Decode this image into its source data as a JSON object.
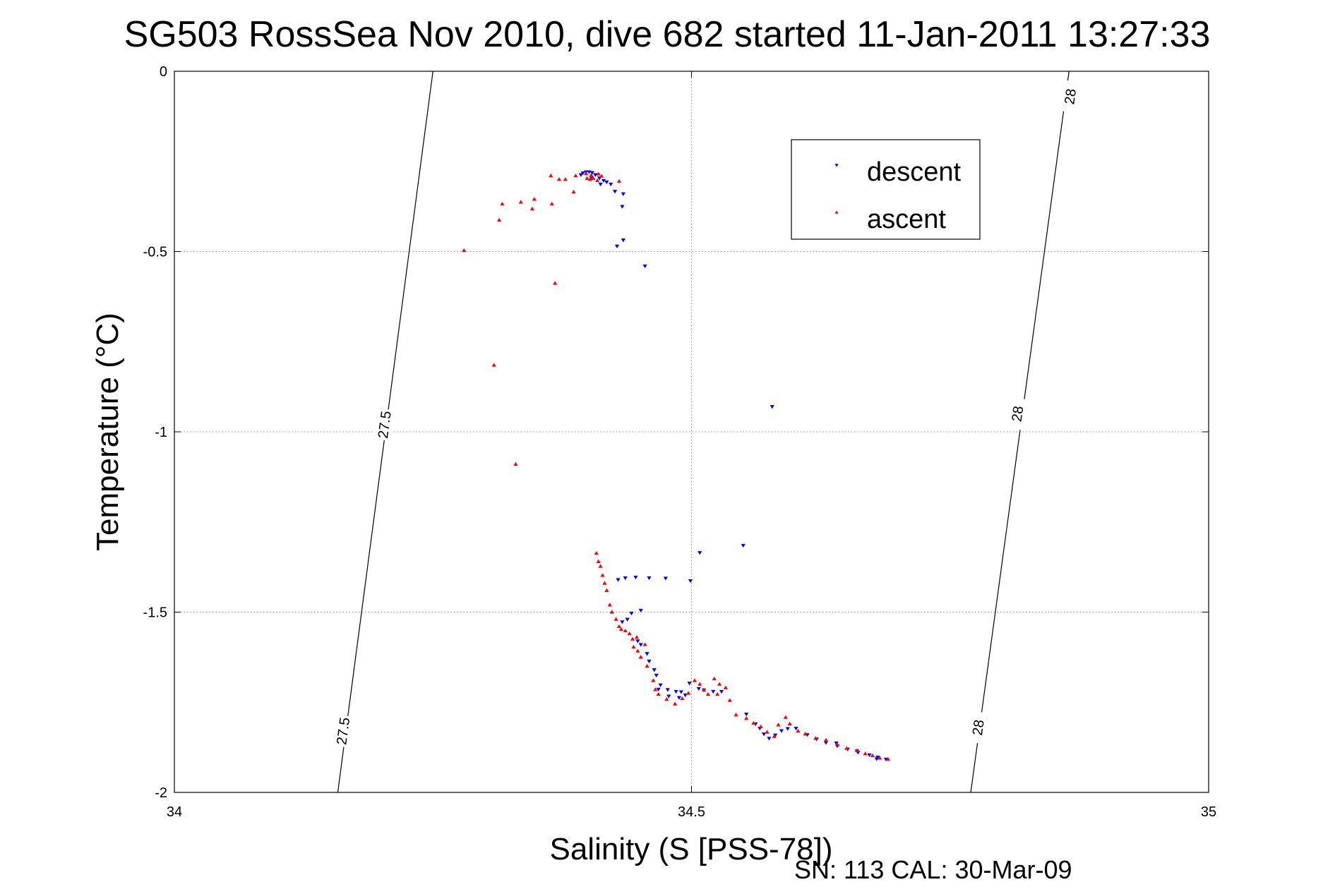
{
  "chart_data": {
    "type": "scatter",
    "title": "SG503 RossSea Nov 2010, dive 682 started 11-Jan-2011 13:27:33",
    "xlabel": "Salinity (S [PSS-78])",
    "ylabel": "Temperature (°C)",
    "footer": "SN: 113  CAL: 30-Mar-09",
    "xlim": [
      34,
      35
    ],
    "ylim": [
      -2,
      0
    ],
    "xticks": [
      34,
      34.5,
      35
    ],
    "yticks": [
      0,
      -0.5,
      -1,
      -1.5,
      -2
    ],
    "xtick_labels": [
      "34",
      "34.5",
      "35"
    ],
    "ytick_labels": [
      "0",
      "-0.5",
      "-1",
      "-1.5",
      "-2"
    ],
    "grid": true,
    "legend": {
      "placement": "top-right",
      "entries": [
        "descent",
        "ascent"
      ]
    },
    "colors": {
      "descent": "#0000ff",
      "ascent": "#ff0000",
      "contour": "#000000",
      "grid": "#8c8c8c"
    },
    "contours": [
      {
        "label": "27.5",
        "points": [
          [
            34.25,
            0
          ],
          [
            34.158,
            -2
          ]
        ],
        "label_positions": [
          [
            34.203,
            -0.98
          ],
          [
            34.163,
            -1.83
          ]
        ]
      },
      {
        "label": "28",
        "points": [
          [
            34.865,
            0
          ],
          [
            34.77,
            -2
          ]
        ],
        "label_positions": [
          [
            34.866,
            -0.07
          ],
          [
            34.815,
            -0.95
          ],
          [
            34.777,
            -1.82
          ]
        ]
      }
    ],
    "series": [
      {
        "name": "descent",
        "marker": "triangle-down",
        "points": [
          [
            34.395,
            -0.282
          ],
          [
            34.398,
            -0.279
          ],
          [
            34.401,
            -0.279
          ],
          [
            34.404,
            -0.281
          ],
          [
            34.407,
            -0.287
          ],
          [
            34.411,
            -0.296
          ],
          [
            34.415,
            -0.303
          ],
          [
            34.418,
            -0.307
          ],
          [
            34.422,
            -0.313
          ],
          [
            34.412,
            -0.313
          ],
          [
            34.393,
            -0.287
          ],
          [
            34.403,
            -0.294
          ],
          [
            34.426,
            -0.333
          ],
          [
            34.434,
            -0.34
          ],
          [
            34.433,
            -0.375
          ],
          [
            34.434,
            -0.468
          ],
          [
            34.428,
            -0.485
          ],
          [
            34.455,
            -0.54
          ],
          [
            34.578,
            -0.93
          ],
          [
            34.429,
            -1.41
          ],
          [
            34.436,
            -1.405
          ],
          [
            34.446,
            -1.403
          ],
          [
            34.459,
            -1.405
          ],
          [
            34.475,
            -1.406
          ],
          [
            34.499,
            -1.413
          ],
          [
            34.451,
            -1.495
          ],
          [
            34.442,
            -1.503
          ],
          [
            34.438,
            -1.52
          ],
          [
            34.433,
            -1.527
          ],
          [
            34.508,
            -1.335
          ],
          [
            34.55,
            -1.315
          ],
          [
            34.448,
            -1.58
          ],
          [
            34.451,
            -1.59
          ],
          [
            34.457,
            -1.615
          ],
          [
            34.459,
            -1.636
          ],
          [
            34.464,
            -1.66
          ],
          [
            34.466,
            -1.675
          ],
          [
            34.47,
            -1.702
          ],
          [
            34.468,
            -1.714
          ],
          [
            34.477,
            -1.715
          ],
          [
            34.485,
            -1.72
          ],
          [
            34.49,
            -1.721
          ],
          [
            34.494,
            -1.73
          ],
          [
            34.488,
            -1.737
          ],
          [
            34.478,
            -1.733
          ],
          [
            34.498,
            -1.697
          ],
          [
            34.507,
            -1.712
          ],
          [
            34.512,
            -1.716
          ],
          [
            34.521,
            -1.72
          ],
          [
            34.529,
            -1.72
          ],
          [
            34.553,
            -1.783
          ],
          [
            34.562,
            -1.81
          ],
          [
            34.566,
            -1.822
          ],
          [
            34.57,
            -1.838
          ],
          [
            34.575,
            -1.85
          ],
          [
            34.581,
            -1.841
          ],
          [
            34.587,
            -1.829
          ],
          [
            34.593,
            -1.823
          ],
          [
            34.601,
            -1.822
          ],
          [
            34.612,
            -1.84
          ],
          [
            34.621,
            -1.852
          ],
          [
            34.63,
            -1.862
          ],
          [
            34.641,
            -1.871
          ],
          [
            34.651,
            -1.88
          ],
          [
            34.661,
            -1.889
          ],
          [
            34.672,
            -1.896
          ],
          [
            34.68,
            -1.902
          ],
          [
            34.688,
            -1.908
          ],
          [
            34.679,
            -1.907
          ],
          [
            34.64,
            -1.863
          ],
          [
            34.66,
            -1.885
          ]
        ]
      },
      {
        "name": "ascent",
        "marker": "triangle-up",
        "points": [
          [
            34.28,
            -0.497
          ],
          [
            34.346,
            -0.382
          ],
          [
            34.364,
            -0.29
          ],
          [
            34.372,
            -0.3
          ],
          [
            34.388,
            -0.29
          ],
          [
            34.398,
            -0.284
          ],
          [
            34.403,
            -0.289
          ],
          [
            34.405,
            -0.297
          ],
          [
            34.409,
            -0.303
          ],
          [
            34.413,
            -0.291
          ],
          [
            34.41,
            -0.285
          ],
          [
            34.399,
            -0.297
          ],
          [
            34.378,
            -0.3
          ],
          [
            34.402,
            -0.3
          ],
          [
            34.43,
            -0.305
          ],
          [
            34.348,
            -0.355
          ],
          [
            34.386,
            -0.335
          ],
          [
            34.365,
            -0.368
          ],
          [
            34.335,
            -0.363
          ],
          [
            34.317,
            -0.368
          ],
          [
            34.314,
            -0.413
          ],
          [
            34.368,
            -0.588
          ],
          [
            34.309,
            -0.815
          ],
          [
            34.33,
            -1.09
          ],
          [
            34.408,
            -1.337
          ],
          [
            34.41,
            -1.36
          ],
          [
            34.412,
            -1.373
          ],
          [
            34.414,
            -1.398
          ],
          [
            34.416,
            -1.42
          ],
          [
            34.418,
            -1.44
          ],
          [
            34.421,
            -1.48
          ],
          [
            34.423,
            -1.5
          ],
          [
            34.427,
            -1.52
          ],
          [
            34.43,
            -1.54
          ],
          [
            34.432,
            -1.548
          ],
          [
            34.436,
            -1.552
          ],
          [
            34.44,
            -1.56
          ],
          [
            34.443,
            -1.575
          ],
          [
            34.444,
            -1.597
          ],
          [
            34.448,
            -1.608
          ],
          [
            34.451,
            -1.625
          ],
          [
            34.457,
            -1.65
          ],
          [
            34.463,
            -1.69
          ],
          [
            34.465,
            -1.715
          ],
          [
            34.468,
            -1.728
          ],
          [
            34.476,
            -1.742
          ],
          [
            34.484,
            -1.755
          ],
          [
            34.491,
            -1.74
          ],
          [
            34.497,
            -1.725
          ],
          [
            34.503,
            -1.69
          ],
          [
            34.508,
            -1.7
          ],
          [
            34.512,
            -1.716
          ],
          [
            34.516,
            -1.728
          ],
          [
            34.522,
            -1.685
          ],
          [
            34.527,
            -1.7
          ],
          [
            34.533,
            -1.71
          ],
          [
            34.537,
            -1.745
          ],
          [
            34.543,
            -1.785
          ],
          [
            34.553,
            -1.795
          ],
          [
            34.56,
            -1.808
          ],
          [
            34.567,
            -1.818
          ],
          [
            34.573,
            -1.833
          ],
          [
            34.58,
            -1.845
          ],
          [
            34.584,
            -1.813
          ],
          [
            34.591,
            -1.792
          ],
          [
            34.595,
            -1.81
          ],
          [
            34.603,
            -1.83
          ],
          [
            34.61,
            -1.838
          ],
          [
            34.62,
            -1.85
          ],
          [
            34.63,
            -1.855
          ],
          [
            34.641,
            -1.868
          ],
          [
            34.65,
            -1.878
          ],
          [
            34.66,
            -1.884
          ],
          [
            34.668,
            -1.893
          ],
          [
            34.675,
            -1.898
          ],
          [
            34.682,
            -1.905
          ],
          [
            34.69,
            -1.908
          ],
          [
            34.525,
            -1.728
          ],
          [
            34.455,
            -1.59
          ],
          [
            34.447,
            -1.57
          ]
        ]
      }
    ]
  }
}
